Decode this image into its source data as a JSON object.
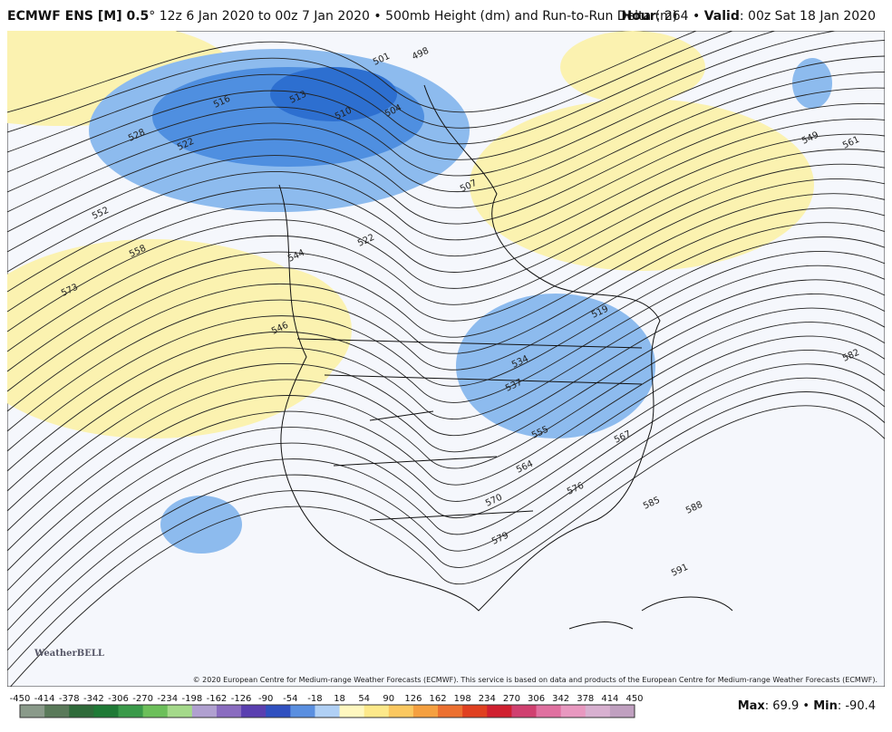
{
  "header": {
    "model": "ECMWF ENS [M] 0.5",
    "description": "° 12z 6 Jan 2020 to 00z 7 Jan 2020 • 500mb Height (dm) and Run-to-Run Delta (m)",
    "hour_label": "Hour",
    "hour_text": ": 264 • ",
    "valid_label": "Valid",
    "valid_text": ": 00z Sat 18 Jan 2020"
  },
  "map": {
    "contour_labels": [
      501,
      498,
      513,
      516,
      510,
      504,
      507,
      528,
      522,
      552,
      558,
      573,
      546,
      522,
      544,
      519,
      537,
      534,
      555,
      567,
      564,
      570,
      576,
      579,
      585,
      588,
      582,
      591,
      549,
      561
    ],
    "copyright": "© 2020 European Centre for Medium-range Weather Forecasts (ECMWF). This service is based on data and products of the European Centre for Medium-range Weather Forecasts (ECMWF).",
    "logo": "WeatherBELL"
  },
  "colorbar": {
    "ticks": [
      -450,
      -414,
      -378,
      -342,
      -306,
      -270,
      -234,
      -198,
      -162,
      -126,
      -90,
      -54,
      -18,
      18,
      54,
      90,
      126,
      162,
      198,
      234,
      270,
      306,
      342,
      378,
      414,
      450
    ]
  },
  "footer": {
    "max_label": "Max",
    "max_text": ": 69.9 • ",
    "min_label": "Min",
    "min_text": ": -90.4"
  }
}
